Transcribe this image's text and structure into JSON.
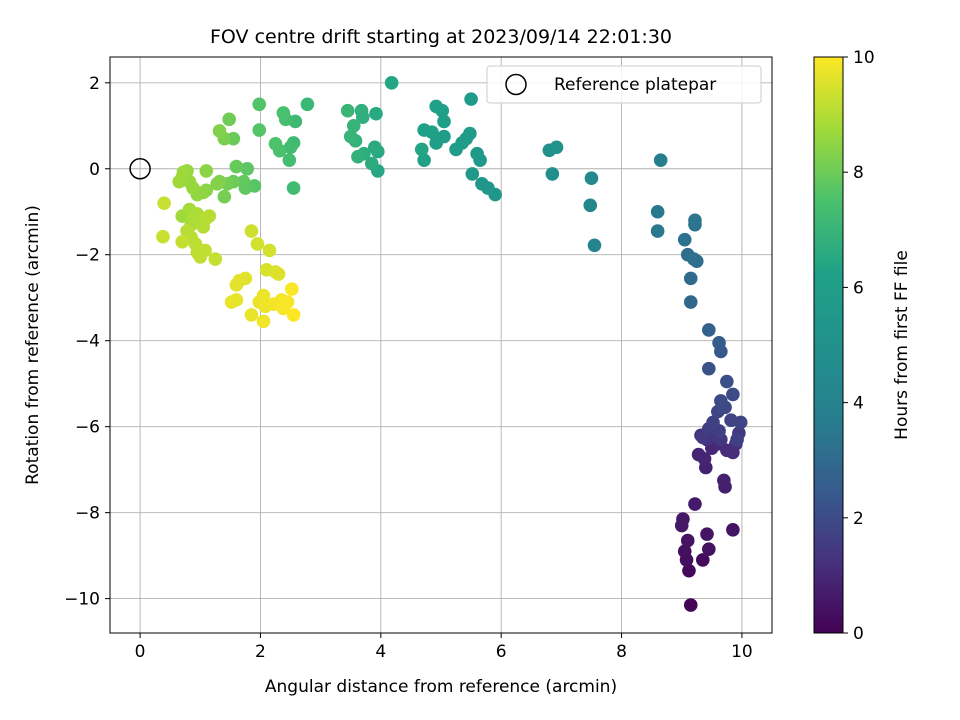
{
  "chart_data": {
    "type": "scatter",
    "title": "FOV centre drift starting at 2023/09/14 22:01:30",
    "xlabel": "Angular distance from reference (arcmin)",
    "ylabel": "Rotation from reference (arcmin)",
    "xlim": [
      -0.5,
      10.5
    ],
    "ylim": [
      -10.8,
      2.6
    ],
    "x_ticks": [
      0,
      2,
      4,
      6,
      8,
      10
    ],
    "y_ticks": [
      2,
      0,
      -2,
      -4,
      -6,
      -8,
      -10
    ],
    "x_tick_labels": [
      "0",
      "2",
      "4",
      "6",
      "8",
      "10"
    ],
    "y_tick_labels": [
      "2",
      "0",
      "−2",
      "−4",
      "−6",
      "−8",
      "−10"
    ],
    "grid": true,
    "legend": {
      "position": "top-right",
      "entries": [
        "Reference platepar"
      ]
    },
    "reference_point": {
      "x": 0,
      "y": 0,
      "label": "Reference platepar"
    },
    "colorbar": {
      "label": "Hours from first FF file",
      "colormap": "viridis",
      "range": [
        0,
        10
      ],
      "ticks": [
        0,
        2,
        4,
        6,
        8,
        10
      ],
      "tick_labels": [
        "0",
        "2",
        "4",
        "6",
        "8",
        "10"
      ]
    },
    "points": [
      {
        "x": 9.15,
        "y": -10.15,
        "h": 0.1
      },
      {
        "x": 9.12,
        "y": -9.35,
        "h": 0.2
      },
      {
        "x": 9.35,
        "y": -9.1,
        "h": 0.25
      },
      {
        "x": 9.08,
        "y": -9.1,
        "h": 0.3
      },
      {
        "x": 9.05,
        "y": -8.9,
        "h": 0.35
      },
      {
        "x": 9.45,
        "y": -8.85,
        "h": 0.4
      },
      {
        "x": 9.1,
        "y": -8.65,
        "h": 0.45
      },
      {
        "x": 9.42,
        "y": -8.5,
        "h": 0.5
      },
      {
        "x": 9.85,
        "y": -8.4,
        "h": 0.5
      },
      {
        "x": 9.0,
        "y": -8.3,
        "h": 0.55
      },
      {
        "x": 9.02,
        "y": -8.15,
        "h": 0.6
      },
      {
        "x": 9.22,
        "y": -7.8,
        "h": 0.65
      },
      {
        "x": 9.72,
        "y": -7.4,
        "h": 0.75
      },
      {
        "x": 9.7,
        "y": -7.25,
        "h": 0.8
      },
      {
        "x": 9.4,
        "y": -6.95,
        "h": 0.85
      },
      {
        "x": 9.28,
        "y": -6.65,
        "h": 0.9
      },
      {
        "x": 9.38,
        "y": -6.75,
        "h": 0.95
      },
      {
        "x": 9.5,
        "y": -6.5,
        "h": 1.0
      },
      {
        "x": 9.6,
        "y": -6.4,
        "h": 1.05
      },
      {
        "x": 9.75,
        "y": -6.55,
        "h": 1.1
      },
      {
        "x": 9.85,
        "y": -6.6,
        "h": 1.15
      },
      {
        "x": 9.9,
        "y": -6.4,
        "h": 1.2
      },
      {
        "x": 9.32,
        "y": -6.2,
        "h": 1.25
      },
      {
        "x": 9.42,
        "y": -6.3,
        "h": 1.3
      },
      {
        "x": 9.55,
        "y": -6.2,
        "h": 1.35
      },
      {
        "x": 9.65,
        "y": -6.3,
        "h": 1.4
      },
      {
        "x": 9.95,
        "y": -6.15,
        "h": 1.45
      },
      {
        "x": 9.35,
        "y": -6.25,
        "h": 1.5
      },
      {
        "x": 9.45,
        "y": -6.05,
        "h": 1.55
      },
      {
        "x": 9.62,
        "y": -6.1,
        "h": 1.6
      },
      {
        "x": 9.92,
        "y": -6.3,
        "h": 1.65
      },
      {
        "x": 9.52,
        "y": -5.9,
        "h": 1.7
      },
      {
        "x": 9.82,
        "y": -5.85,
        "h": 1.75
      },
      {
        "x": 9.98,
        "y": -5.9,
        "h": 1.8
      },
      {
        "x": 9.6,
        "y": -5.65,
        "h": 1.85
      },
      {
        "x": 9.72,
        "y": -5.55,
        "h": 1.9
      },
      {
        "x": 9.65,
        "y": -5.4,
        "h": 1.95
      },
      {
        "x": 9.85,
        "y": -5.25,
        "h": 2.0
      },
      {
        "x": 9.75,
        "y": -4.95,
        "h": 2.1
      },
      {
        "x": 9.45,
        "y": -4.65,
        "h": 2.2
      },
      {
        "x": 9.65,
        "y": -4.25,
        "h": 2.35
      },
      {
        "x": 9.62,
        "y": -4.05,
        "h": 2.5
      },
      {
        "x": 9.45,
        "y": -3.75,
        "h": 2.65
      },
      {
        "x": 9.15,
        "y": -3.1,
        "h": 2.85
      },
      {
        "x": 9.15,
        "y": -2.55,
        "h": 3.0
      },
      {
        "x": 9.1,
        "y": -2.0,
        "h": 3.1
      },
      {
        "x": 9.25,
        "y": -2.15,
        "h": 3.15
      },
      {
        "x": 9.2,
        "y": -2.1,
        "h": 3.2
      },
      {
        "x": 9.05,
        "y": -1.65,
        "h": 3.3
      },
      {
        "x": 9.22,
        "y": -1.3,
        "h": 3.35
      },
      {
        "x": 9.22,
        "y": -1.2,
        "h": 3.4
      },
      {
        "x": 8.6,
        "y": -1.45,
        "h": 3.5
      },
      {
        "x": 8.6,
        "y": -1.0,
        "h": 3.55
      },
      {
        "x": 8.65,
        "y": 0.2,
        "h": 3.75
      },
      {
        "x": 7.55,
        "y": -1.78,
        "h": 4.15
      },
      {
        "x": 7.48,
        "y": -0.85,
        "h": 4.3
      },
      {
        "x": 7.5,
        "y": -0.22,
        "h": 4.45
      },
      {
        "x": 6.85,
        "y": -0.12,
        "h": 4.9
      },
      {
        "x": 6.8,
        "y": 0.43,
        "h": 5.0
      },
      {
        "x": 6.92,
        "y": 0.5,
        "h": 5.05
      },
      {
        "x": 5.9,
        "y": -0.6,
        "h": 5.4
      },
      {
        "x": 5.78,
        "y": -0.45,
        "h": 5.45
      },
      {
        "x": 5.68,
        "y": -0.35,
        "h": 5.5
      },
      {
        "x": 5.65,
        "y": 0.2,
        "h": 5.55
      },
      {
        "x": 5.6,
        "y": 0.35,
        "h": 5.6
      },
      {
        "x": 5.52,
        "y": -0.12,
        "h": 5.65
      },
      {
        "x": 5.5,
        "y": 1.62,
        "h": 5.7
      },
      {
        "x": 5.48,
        "y": 0.82,
        "h": 5.75
      },
      {
        "x": 5.42,
        "y": 0.7,
        "h": 5.8
      },
      {
        "x": 5.35,
        "y": 0.6,
        "h": 5.85
      },
      {
        "x": 5.25,
        "y": 0.45,
        "h": 5.9
      },
      {
        "x": 5.05,
        "y": 0.75,
        "h": 5.95
      },
      {
        "x": 5.05,
        "y": 1.1,
        "h": 6.0
      },
      {
        "x": 5.02,
        "y": 1.35,
        "h": 6.05
      },
      {
        "x": 4.92,
        "y": 0.6,
        "h": 6.1
      },
      {
        "x": 4.92,
        "y": 1.45,
        "h": 6.15
      },
      {
        "x": 4.85,
        "y": 0.85,
        "h": 6.2
      },
      {
        "x": 4.72,
        "y": 0.9,
        "h": 6.25
      },
      {
        "x": 4.72,
        "y": 0.2,
        "h": 6.3
      },
      {
        "x": 4.68,
        "y": 0.45,
        "h": 6.35
      },
      {
        "x": 4.18,
        "y": 2.0,
        "h": 6.4
      },
      {
        "x": 3.95,
        "y": -0.05,
        "h": 6.45
      },
      {
        "x": 3.95,
        "y": 0.4,
        "h": 6.5
      },
      {
        "x": 3.92,
        "y": 1.28,
        "h": 6.55
      },
      {
        "x": 3.9,
        "y": 0.5,
        "h": 6.6
      },
      {
        "x": 3.85,
        "y": 0.12,
        "h": 6.65
      },
      {
        "x": 3.72,
        "y": 0.35,
        "h": 6.7
      },
      {
        "x": 3.7,
        "y": 1.2,
        "h": 6.75
      },
      {
        "x": 3.68,
        "y": 1.35,
        "h": 6.8
      },
      {
        "x": 3.62,
        "y": 0.28,
        "h": 6.85
      },
      {
        "x": 3.58,
        "y": 0.65,
        "h": 6.9
      },
      {
        "x": 3.55,
        "y": 1.0,
        "h": 6.95
      },
      {
        "x": 3.5,
        "y": 0.75,
        "h": 7.0
      },
      {
        "x": 3.45,
        "y": 1.35,
        "h": 7.05
      },
      {
        "x": 2.78,
        "y": 1.5,
        "h": 7.1
      },
      {
        "x": 2.58,
        "y": 1.1,
        "h": 7.15
      },
      {
        "x": 2.55,
        "y": 0.6,
        "h": 7.2
      },
      {
        "x": 2.55,
        "y": -0.45,
        "h": 7.25
      },
      {
        "x": 2.5,
        "y": 0.5,
        "h": 7.3
      },
      {
        "x": 2.48,
        "y": 0.2,
        "h": 7.35
      },
      {
        "x": 2.42,
        "y": 1.15,
        "h": 7.4
      },
      {
        "x": 2.38,
        "y": 1.3,
        "h": 7.45
      },
      {
        "x": 2.32,
        "y": 0.42,
        "h": 7.5
      },
      {
        "x": 2.25,
        "y": 0.58,
        "h": 7.55
      },
      {
        "x": 1.98,
        "y": 1.5,
        "h": 7.6
      },
      {
        "x": 1.98,
        "y": 0.9,
        "h": 7.65
      },
      {
        "x": 1.9,
        "y": -0.4,
        "h": 7.7
      },
      {
        "x": 1.78,
        "y": 0.0,
        "h": 7.75
      },
      {
        "x": 1.75,
        "y": -0.45,
        "h": 7.8
      },
      {
        "x": 1.72,
        "y": -0.3,
        "h": 7.85
      },
      {
        "x": 1.6,
        "y": 0.05,
        "h": 7.9
      },
      {
        "x": 1.55,
        "y": 0.7,
        "h": 7.95
      },
      {
        "x": 1.55,
        "y": -0.3,
        "h": 8.0
      },
      {
        "x": 1.48,
        "y": 1.15,
        "h": 8.05
      },
      {
        "x": 1.45,
        "y": -0.35,
        "h": 8.1
      },
      {
        "x": 1.4,
        "y": -0.65,
        "h": 8.15
      },
      {
        "x": 1.4,
        "y": 0.7,
        "h": 8.2
      },
      {
        "x": 1.32,
        "y": -0.3,
        "h": 8.25
      },
      {
        "x": 1.32,
        "y": 0.88,
        "h": 8.3
      },
      {
        "x": 1.28,
        "y": -0.35,
        "h": 8.35
      },
      {
        "x": 1.1,
        "y": -0.5,
        "h": 8.4
      },
      {
        "x": 1.1,
        "y": -0.05,
        "h": 8.45
      },
      {
        "x": 1.05,
        "y": -0.55,
        "h": 8.5
      },
      {
        "x": 0.95,
        "y": -0.6,
        "h": 8.55
      },
      {
        "x": 0.88,
        "y": -0.45,
        "h": 8.6
      },
      {
        "x": 0.82,
        "y": -0.3,
        "h": 8.62
      },
      {
        "x": 0.78,
        "y": -0.05,
        "h": 8.65
      },
      {
        "x": 0.72,
        "y": -0.08,
        "h": 8.68
      },
      {
        "x": 0.7,
        "y": -0.2,
        "h": 8.7
      },
      {
        "x": 0.65,
        "y": -0.3,
        "h": 8.72
      },
      {
        "x": 0.7,
        "y": -1.1,
        "h": 8.75
      },
      {
        "x": 0.82,
        "y": -0.95,
        "h": 8.8
      },
      {
        "x": 0.85,
        "y": -1.3,
        "h": 8.85
      },
      {
        "x": 0.9,
        "y": -1.15,
        "h": 8.9
      },
      {
        "x": 0.95,
        "y": -1.05,
        "h": 8.92
      },
      {
        "x": 1.0,
        "y": -1.25,
        "h": 8.95
      },
      {
        "x": 1.05,
        "y": -1.35,
        "h": 9.0
      },
      {
        "x": 1.1,
        "y": -1.15,
        "h": 9.02
      },
      {
        "x": 1.15,
        "y": -1.1,
        "h": 9.05
      },
      {
        "x": 0.78,
        "y": -1.45,
        "h": 9.08
      },
      {
        "x": 0.85,
        "y": -1.6,
        "h": 9.1
      },
      {
        "x": 0.92,
        "y": -1.75,
        "h": 9.12
      },
      {
        "x": 0.95,
        "y": -1.95,
        "h": 9.15
      },
      {
        "x": 1.0,
        "y": -2.05,
        "h": 9.18
      },
      {
        "x": 1.08,
        "y": -1.9,
        "h": 9.2
      },
      {
        "x": 1.25,
        "y": -2.1,
        "h": 9.22
      },
      {
        "x": 0.7,
        "y": -1.7,
        "h": 9.25
      },
      {
        "x": 0.4,
        "y": -0.8,
        "h": 9.28
      },
      {
        "x": 0.38,
        "y": -1.58,
        "h": 9.3
      },
      {
        "x": 1.85,
        "y": -1.45,
        "h": 9.35
      },
      {
        "x": 1.95,
        "y": -1.75,
        "h": 9.4
      },
      {
        "x": 2.15,
        "y": -1.9,
        "h": 9.45
      },
      {
        "x": 2.1,
        "y": -2.35,
        "h": 9.5
      },
      {
        "x": 2.25,
        "y": -2.4,
        "h": 9.52
      },
      {
        "x": 2.3,
        "y": -2.45,
        "h": 9.55
      },
      {
        "x": 1.75,
        "y": -2.55,
        "h": 9.6
      },
      {
        "x": 1.65,
        "y": -2.6,
        "h": 9.62
      },
      {
        "x": 1.6,
        "y": -2.7,
        "h": 9.65
      },
      {
        "x": 1.6,
        "y": -3.05,
        "h": 9.68
      },
      {
        "x": 1.52,
        "y": -3.1,
        "h": 9.7
      },
      {
        "x": 1.85,
        "y": -3.4,
        "h": 9.72
      },
      {
        "x": 1.98,
        "y": -3.1,
        "h": 9.75
      },
      {
        "x": 2.05,
        "y": -2.95,
        "h": 9.78
      },
      {
        "x": 2.08,
        "y": -3.2,
        "h": 9.8
      },
      {
        "x": 2.05,
        "y": -3.55,
        "h": 9.82
      },
      {
        "x": 2.22,
        "y": -3.15,
        "h": 9.85
      },
      {
        "x": 2.35,
        "y": -3.05,
        "h": 9.88
      },
      {
        "x": 2.38,
        "y": -3.25,
        "h": 9.9
      },
      {
        "x": 2.45,
        "y": -3.1,
        "h": 9.92
      },
      {
        "x": 2.52,
        "y": -2.8,
        "h": 9.95
      },
      {
        "x": 2.55,
        "y": -3.4,
        "h": 9.98
      }
    ]
  }
}
